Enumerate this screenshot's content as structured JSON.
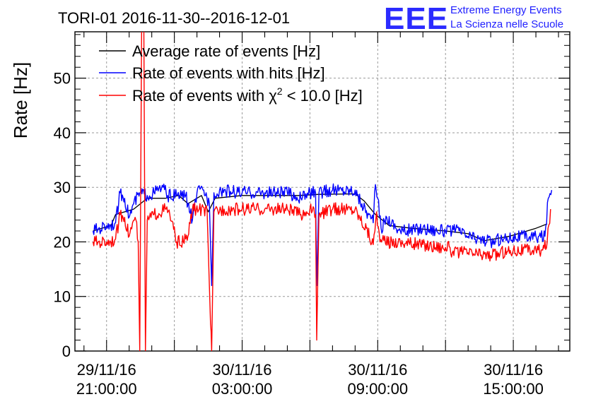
{
  "colors": {
    "average": "#000000",
    "hits": "#0000ff",
    "chi2": "#ff0000",
    "grid": "#9a9a9a",
    "logo": "#2b2bff"
  },
  "logo": {
    "mark": "EEE",
    "line1": "Extreme Energy Events",
    "line2": "La Scienza nelle Scuole"
  },
  "chart_data": {
    "type": "line",
    "title": "TORI-01 2016-11-30--2016-12-01",
    "ylabel": "Rate [Hz]",
    "xlabel": "",
    "x_unit": "hours after 29/11/16 21:00:00",
    "xlim": [
      -1.4,
      20.5
    ],
    "ylim": [
      0,
      58.5
    ],
    "y_ticks": [
      0,
      10,
      20,
      30,
      40,
      50
    ],
    "x_ticks": [
      {
        "x": 0,
        "line1": "29/11/16",
        "line2": "21:00:00"
      },
      {
        "x": 6,
        "line1": "30/11/16",
        "line2": "03:00:00"
      },
      {
        "x": 12,
        "line1": "30/11/16",
        "line2": "09:00:00"
      },
      {
        "x": 18,
        "line1": "30/11/16",
        "line2": "15:00:00"
      }
    ],
    "grid": true,
    "legend_position": "top-left",
    "legend": [
      {
        "key": "average",
        "label": "Average rate of events [Hz]"
      },
      {
        "key": "hits",
        "label": "Rate of events with hits [Hz]"
      },
      {
        "key": "chi2",
        "label_prefix": "Rate of events with ",
        "label_symbol": "χ",
        "label_sup": "2",
        "label_suffix": " < 10.0 [Hz]"
      }
    ],
    "series": [
      {
        "key": "average",
        "name": "Average rate of events [Hz]",
        "points": [
          [
            -0.6,
            22
          ],
          [
            0.2,
            23
          ],
          [
            0.4,
            25
          ],
          [
            1.2,
            26
          ],
          [
            1.8,
            28
          ],
          [
            2.6,
            28
          ],
          [
            3.2,
            28.5
          ],
          [
            3.6,
            27
          ],
          [
            4.2,
            28.5
          ],
          [
            4.5,
            25.5
          ],
          [
            4.8,
            28
          ],
          [
            6,
            28.5
          ],
          [
            7.5,
            28.5
          ],
          [
            8.5,
            28.5
          ],
          [
            9.4,
            28.7
          ],
          [
            11,
            28.8
          ],
          [
            11.4,
            27.5
          ],
          [
            11.9,
            25
          ],
          [
            12.5,
            23
          ],
          [
            13.5,
            22.5
          ],
          [
            15,
            22
          ],
          [
            16,
            21.5
          ],
          [
            16.7,
            20.2
          ],
          [
            17.8,
            21
          ],
          [
            19,
            22.5
          ],
          [
            19.5,
            23.3
          ]
        ]
      },
      {
        "key": "hits",
        "name": "Rate of events with hits [Hz]",
        "points": [
          [
            -0.6,
            22
          ],
          [
            0,
            23
          ],
          [
            0.4,
            23.5
          ],
          [
            0.6,
            29
          ],
          [
            0.8,
            28
          ],
          [
            1,
            24.5
          ],
          [
            1.2,
            27
          ],
          [
            1.5,
            29
          ],
          [
            1.8,
            28.5
          ],
          [
            2.1,
            29
          ],
          [
            2.5,
            30
          ],
          [
            2.7,
            28.5
          ],
          [
            3.1,
            28.5
          ],
          [
            3.5,
            28.5
          ],
          [
            3.8,
            24
          ],
          [
            4,
            29
          ],
          [
            4.3,
            29.5
          ],
          [
            4.55,
            27
          ],
          [
            4.65,
            12
          ],
          [
            4.75,
            29
          ],
          [
            5,
            29.5
          ],
          [
            6,
            29
          ],
          [
            7,
            29
          ],
          [
            8,
            29
          ],
          [
            8.6,
            28
          ],
          [
            9,
            29
          ],
          [
            9.25,
            29
          ],
          [
            9.3,
            12
          ],
          [
            9.4,
            29
          ],
          [
            10,
            29.5
          ],
          [
            11,
            29.5
          ],
          [
            11.1,
            28.5
          ],
          [
            11.3,
            27
          ],
          [
            11.6,
            25
          ],
          [
            11.8,
            23.5
          ],
          [
            11.9,
            30.5
          ],
          [
            12,
            28
          ],
          [
            12.15,
            22.5
          ],
          [
            12.4,
            24.5
          ],
          [
            13,
            22
          ],
          [
            14,
            22.5
          ],
          [
            15,
            22
          ],
          [
            15.6,
            22
          ],
          [
            16,
            21
          ],
          [
            16.5,
            20.5
          ],
          [
            17,
            20
          ],
          [
            17.5,
            20.5
          ],
          [
            18,
            21
          ],
          [
            19,
            21
          ],
          [
            19.4,
            21
          ],
          [
            19.55,
            28
          ],
          [
            19.7,
            29.5
          ]
        ]
      },
      {
        "key": "chi2",
        "name": "Rate of events with χ2 < 10.0 [Hz]",
        "points": [
          [
            -0.6,
            20
          ],
          [
            0,
            20
          ],
          [
            0.4,
            20.5
          ],
          [
            0.6,
            25
          ],
          [
            0.8,
            24.5
          ],
          [
            1,
            21
          ],
          [
            1.15,
            23.5
          ],
          [
            1.3,
            24
          ],
          [
            1.4,
            20
          ],
          [
            1.47,
            0
          ],
          [
            1.55,
            58.5
          ],
          [
            1.65,
            58.5
          ],
          [
            1.72,
            0
          ],
          [
            1.8,
            24
          ],
          [
            2.1,
            25
          ],
          [
            2.6,
            26
          ],
          [
            2.8,
            25
          ],
          [
            3.1,
            20
          ],
          [
            3.4,
            20
          ],
          [
            3.6,
            21
          ],
          [
            3.8,
            26
          ],
          [
            4.1,
            26
          ],
          [
            4.45,
            25.5
          ],
          [
            4.6,
            5
          ],
          [
            4.65,
            0
          ],
          [
            4.75,
            25.5
          ],
          [
            5.2,
            26
          ],
          [
            6,
            26
          ],
          [
            7,
            26
          ],
          [
            8,
            26
          ],
          [
            8.6,
            25
          ],
          [
            9,
            26
          ],
          [
            9.25,
            25
          ],
          [
            9.3,
            2
          ],
          [
            9.4,
            25
          ],
          [
            10,
            26
          ],
          [
            11,
            26
          ],
          [
            11.2,
            24.5
          ],
          [
            11.5,
            22.5
          ],
          [
            11.8,
            19.5
          ],
          [
            11.95,
            25.5
          ],
          [
            12.1,
            20
          ],
          [
            13,
            20
          ],
          [
            14,
            19.5
          ],
          [
            15,
            19
          ],
          [
            15.2,
            19
          ],
          [
            15.3,
            18
          ],
          [
            16,
            18
          ],
          [
            17,
            17.5
          ],
          [
            18,
            18.5
          ],
          [
            19,
            18.5
          ],
          [
            19.3,
            18.5
          ],
          [
            19.5,
            20
          ],
          [
            19.65,
            26
          ]
        ]
      }
    ]
  }
}
